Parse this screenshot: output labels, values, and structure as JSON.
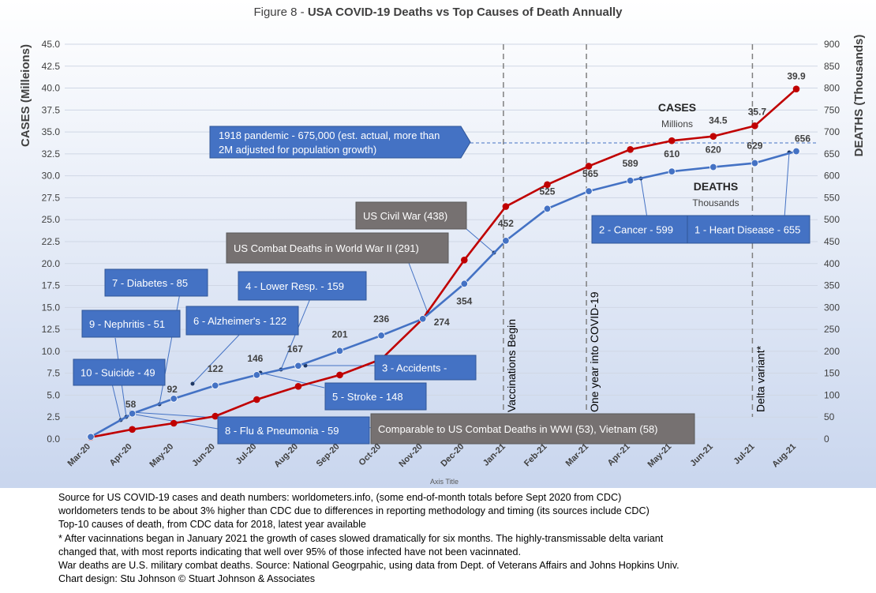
{
  "chart_data": {
    "type": "line",
    "title_prefix": "Figure 8 - ",
    "title_main": "USA COVID-19 Deaths vs Top Causes of Death Annually",
    "xlabel": "Axis Title",
    "ylabel_left": "CASES (Milleions)",
    "ylabel_right": "DEATHS (Thousands)",
    "ylim_left": [
      0,
      45
    ],
    "ylim_right": [
      0,
      900
    ],
    "yticks_left": [
      "0.0",
      "2.5",
      "5.0",
      "7.5",
      "10.0",
      "12.5",
      "15.0",
      "17.5",
      "20.0",
      "22.5",
      "25.0",
      "27.5",
      "30.0",
      "32.5",
      "35.0",
      "37.5",
      "40.0",
      "42.5",
      "45.0"
    ],
    "yticks_right": [
      "0",
      "50",
      "100",
      "150",
      "200",
      "250",
      "300",
      "350",
      "400",
      "450",
      "500",
      "550",
      "600",
      "650",
      "700",
      "750",
      "800",
      "850",
      "900"
    ],
    "categories": [
      "Mar-20",
      "Apr-20",
      "May-20",
      "Jun-20",
      "Jul-20",
      "Aug-20",
      "Sep-20",
      "Oct-20",
      "Nov-20",
      "Dec-20",
      "Jan-21",
      "Feb-21",
      "Mar-21",
      "Apr-21",
      "May-21",
      "Jun-21",
      "Jul-21",
      "Aug-21"
    ],
    "series": [
      {
        "name": "CASES",
        "unit": "Millions",
        "axis": "left",
        "color": "#c00000",
        "values": [
          0.2,
          1.1,
          1.8,
          2.6,
          4.5,
          6.0,
          7.3,
          9.1,
          13.7,
          20.4,
          26.5,
          29.0,
          31.1,
          33.0,
          34.0,
          34.5,
          35.7,
          39.9
        ],
        "labels": [
          "",
          "",
          "",
          "",
          "",
          "",
          "",
          "",
          "",
          "",
          "",
          "",
          "",
          "",
          "",
          "34.5",
          "35.7",
          "39.9"
        ]
      },
      {
        "name": "DEATHS",
        "unit": "Thousands",
        "axis": "right",
        "color": "#4472c4",
        "values": [
          5,
          58,
          92,
          122,
          146,
          167,
          201,
          236,
          274,
          354,
          452,
          525,
          565,
          589,
          610,
          620,
          629,
          656
        ],
        "labels": [
          "",
          "58",
          "92",
          "122",
          "146",
          "167",
          "201",
          "236",
          "274",
          "354",
          "452",
          "525",
          "565",
          "589",
          "610",
          "620",
          "629",
          "656"
        ]
      }
    ],
    "vlines": [
      {
        "label": "Vaccinations Begin",
        "x": 10
      },
      {
        "label": "One year into COVID-19",
        "x": 12
      },
      {
        "label": "Delta variant*",
        "x": 16
      }
    ],
    "reference_line": {
      "value": 675,
      "axis": "right",
      "color": "#4472c4"
    },
    "annotations": [
      {
        "text": "1918 pandemic - 675,000 (est. actual, more than",
        "text2": "2M adjusted for population growth)",
        "style": "arrow",
        "color": "#4472c4",
        "value": 675
      },
      {
        "text": "US Civil War (438)",
        "color": "#767171",
        "value": 438
      },
      {
        "text": "US Combat Deaths in World War II (291)",
        "color": "#767171",
        "value": 291
      },
      {
        "text": "7 - Diabetes - 85",
        "color": "#4472c4",
        "value": 85
      },
      {
        "text": "4 - Lower Resp.  - 159",
        "color": "#4472c4",
        "value": 159
      },
      {
        "text": "6 - Alzheimer's - 122",
        "color": "#4472c4",
        "value": 122
      },
      {
        "text": "9 - Nephritis - 51",
        "color": "#4472c4",
        "value": 51
      },
      {
        "text": "10 - Suicide - 49",
        "color": "#4472c4",
        "value": 49
      },
      {
        "text": "3 - Accidents -",
        "color": "#4472c4",
        "value": 167
      },
      {
        "text": "5 -  Stroke - 148",
        "color": "#4472c4",
        "value": 148
      },
      {
        "text": "8 - Flu & Pneumonia - 59",
        "color": "#4472c4",
        "value": 59
      },
      {
        "text": "Comparable to US Combat Deaths in WWI (53), Vietnam (58)",
        "color": "#767171",
        "value": 58
      },
      {
        "text": "2 - Cancer - 599",
        "color": "#4472c4",
        "value": 599
      },
      {
        "text": "1 - Heart Disease - 655",
        "color": "#4472c4",
        "value": 655
      }
    ],
    "legend_placement": "inline near series",
    "grid": true,
    "background": [
      "#ffffff",
      "#c9d6ee"
    ]
  },
  "notes": [
    "Source for US COVID-19 cases and death numbers: worldometers.info, (some end-of-month totals before Sept 2020 from CDC)",
    "worldometers tends to be about 3% higher than CDC due to differences in reporting methodology and timing (its sources include CDC)",
    "Top-10 causes of death, from CDC data for 2018, latest year available",
    "* After vacinnations began in January 2021 the growth of cases slowed dramatically for six months. The highly-transmissable delta variant",
    "changed that, with most reports indicating that well over 95% of those infected have not been vacinnated.",
    "War deaths are U.S. military combat deaths.  Source: National Geogrpahic, using data from Dept. of Veterans Affairs and Johns Hopkins Univ.",
    "Chart design: Stu Johnson © Stuart Johnson & Associates"
  ]
}
